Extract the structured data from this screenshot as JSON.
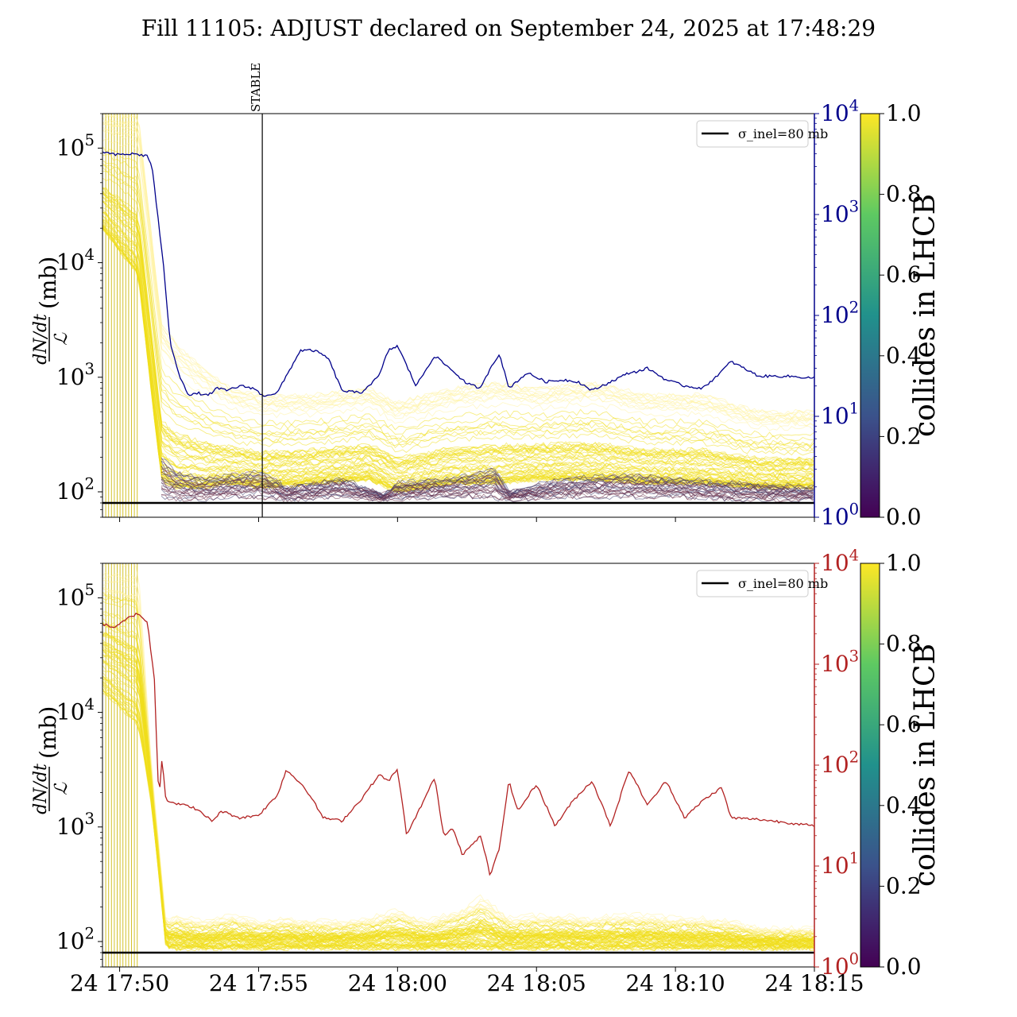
{
  "title": "Fill 11105: ADJUST declared on September 24, 2025 at 17:48:29",
  "chart_data": [
    {
      "type": "line",
      "panel": "top",
      "title": "",
      "ylabel_numerator": "dN/dt",
      "ylabel_denominator": "ℒ",
      "ylabel_unit": "(mb)",
      "yscale": "log",
      "ylim": [
        60,
        200000
      ],
      "yticks": [
        "10^2",
        "10^3",
        "10^4",
        "10^5"
      ],
      "y2scale": "log",
      "y2lim": [
        1,
        10000
      ],
      "y2ticks": [
        "10^0",
        "10^1",
        "10^2",
        "10^3",
        "10^4"
      ],
      "y2color": "#00008b",
      "xlim": [
        "17:49:23",
        "18:15:00"
      ],
      "xtick_labels": [],
      "vline": {
        "x": "17:55:08",
        "label": "STABLE"
      },
      "legend": {
        "entry": "σ_inel=80 mb",
        "placement": "top-right"
      },
      "hline": {
        "y": 80,
        "color": "#000000"
      },
      "bands": [
        {
          "name": "",
          "color_value": 1.0,
          "x": [
            "17:49:23",
            "17:50:40",
            "17:51:30",
            "17:52:00",
            "17:53:00",
            "17:54:00",
            "17:55:08",
            "17:57:00",
            "17:59:00",
            "18:00:00",
            "18:02:00",
            "18:03:30",
            "18:05:00",
            "18:07:00",
            "18:09:00",
            "18:11:00",
            "18:13:00",
            "18:15:00"
          ],
          "lo": [
            20000,
            8000,
            130,
            110,
            110,
            120,
            110,
            120,
            130,
            100,
            120,
            120,
            130,
            130,
            120,
            120,
            110,
            110
          ],
          "hi": [
            200000,
            200000,
            3000,
            2000,
            1200,
            800,
            700,
            700,
            800,
            600,
            800,
            900,
            800,
            900,
            700,
            700,
            500,
            500
          ]
        },
        {
          "name": "",
          "color_value": 0.05,
          "x": [
            "17:51:30",
            "17:52:00",
            "17:53:00",
            "17:54:00",
            "17:55:08",
            "17:56:00",
            "17:58:00",
            "17:59:30",
            "18:00:00",
            "18:02:00",
            "18:03:30",
            "18:04:00",
            "18:06:00",
            "18:08:00",
            "18:10:00",
            "18:12:00",
            "18:15:00"
          ],
          "lo": [
            85,
            85,
            85,
            90,
            88,
            85,
            90,
            85,
            85,
            90,
            88,
            85,
            90,
            90,
            90,
            85,
            85
          ],
          "hi": [
            200,
            150,
            130,
            140,
            150,
            110,
            130,
            95,
            120,
            130,
            160,
            100,
            130,
            140,
            130,
            120,
            110
          ]
        }
      ],
      "series": [
        {
          "name": "",
          "axis": "y2",
          "x": [
            "17:49:23",
            "17:49:50",
            "17:50:30",
            "17:51:00",
            "17:51:10",
            "17:51:20",
            "17:51:35",
            "17:51:50",
            "17:52:10",
            "17:52:30",
            "17:52:50",
            "17:53:10",
            "17:53:30",
            "17:53:50",
            "17:54:20",
            "17:54:50",
            "17:55:08",
            "17:55:40",
            "17:56:30",
            "17:57:00",
            "17:57:30",
            "17:58:00",
            "17:58:40",
            "17:59:20",
            "17:59:40",
            "18:00:00",
            "18:00:40",
            "18:01:20",
            "18:02:00",
            "18:02:30",
            "18:03:00",
            "18:03:20",
            "18:03:40",
            "18:04:00",
            "18:04:40",
            "18:05:20",
            "18:06:00",
            "18:06:30",
            "18:07:00",
            "18:07:40",
            "18:08:20",
            "18:08:40",
            "18:09:00",
            "18:09:40",
            "18:10:20",
            "18:11:00",
            "18:11:40",
            "18:12:00",
            "18:13:00",
            "18:14:00",
            "18:15:00"
          ],
          "y": [
            4200,
            3900,
            4000,
            3800,
            3000,
            1200,
            300,
            50,
            25,
            16,
            17,
            16,
            19,
            18,
            20,
            19,
            16,
            17,
            45,
            45,
            38,
            18,
            17,
            25,
            45,
            50,
            20,
            40,
            28,
            21,
            19,
            30,
            42,
            19,
            27,
            22,
            23,
            22,
            18,
            22,
            27,
            28,
            30,
            23,
            20,
            19,
            28,
            35,
            25,
            25,
            24
          ]
        }
      ]
    },
    {
      "type": "line",
      "panel": "bottom",
      "title": "",
      "ylabel_numerator": "dN/dt",
      "ylabel_denominator": "ℒ",
      "ylabel_unit": "(mb)",
      "yscale": "log",
      "ylim": [
        60,
        200000
      ],
      "yticks": [
        "10^2",
        "10^3",
        "10^4",
        "10^5"
      ],
      "y2scale": "log",
      "y2lim": [
        1,
        10000
      ],
      "y2ticks": [
        "10^0",
        "10^1",
        "10^2",
        "10^3",
        "10^4"
      ],
      "y2color": "#b22222",
      "xlim": [
        "17:49:23",
        "18:15:00"
      ],
      "xtick_labels": [
        "24 17:50",
        "24 17:55",
        "24 18:00",
        "24 18:05",
        "24 18:10",
        "24 18:15"
      ],
      "xtick_times": [
        "17:50:00",
        "17:55:00",
        "18:00:00",
        "18:05:00",
        "18:10:00",
        "18:15:00"
      ],
      "legend": {
        "entry": "σ_inel=80 mb",
        "placement": "top-right"
      },
      "hline": {
        "y": 80,
        "color": "#000000"
      },
      "bands": [
        {
          "name": "",
          "color_value": 1.0,
          "x": [
            "17:49:23",
            "17:50:40",
            "17:51:10",
            "17:51:40",
            "17:52:00",
            "17:53:00",
            "17:54:00",
            "17:55:00",
            "17:56:00",
            "17:57:00",
            "17:58:00",
            "17:59:00",
            "18:00:00",
            "18:01:00",
            "18:02:00",
            "18:02:30",
            "18:03:00",
            "18:03:30",
            "18:04:00",
            "18:05:00",
            "18:06:00",
            "18:07:00",
            "18:08:00",
            "18:09:00",
            "18:10:00",
            "18:11:00",
            "18:12:00",
            "18:13:00",
            "18:14:00",
            "18:15:00"
          ],
          "lo": [
            15000,
            8000,
            1500,
            90,
            88,
            88,
            88,
            88,
            88,
            88,
            88,
            88,
            88,
            88,
            88,
            88,
            88,
            88,
            88,
            88,
            88,
            88,
            88,
            88,
            88,
            88,
            88,
            88,
            88,
            88
          ],
          "hi": [
            200000,
            200000,
            3000,
            150,
            170,
            150,
            170,
            150,
            160,
            150,
            150,
            160,
            190,
            150,
            180,
            200,
            250,
            200,
            160,
            170,
            170,
            160,
            170,
            170,
            160,
            160,
            150,
            130,
            130,
            130
          ]
        }
      ],
      "series": [
        {
          "name": "",
          "axis": "y2",
          "x": [
            "17:49:23",
            "17:49:50",
            "17:50:20",
            "17:50:40",
            "17:51:00",
            "17:51:15",
            "17:51:25",
            "17:51:30",
            "17:51:35",
            "17:51:40",
            "17:52:00",
            "17:52:40",
            "17:53:20",
            "17:53:40",
            "17:54:20",
            "17:55:00",
            "17:55:40",
            "17:56:00",
            "17:56:40",
            "17:57:20",
            "17:58:00",
            "17:58:40",
            "17:59:20",
            "17:59:40",
            "18:00:00",
            "18:00:20",
            "18:01:20",
            "18:01:40",
            "18:02:00",
            "18:02:20",
            "18:02:40",
            "18:03:00",
            "18:03:20",
            "18:03:40",
            "18:04:00",
            "18:04:20",
            "18:05:00",
            "18:05:40",
            "18:06:20",
            "18:07:00",
            "18:07:40",
            "18:08:20",
            "18:09:00",
            "18:09:40",
            "18:10:20",
            "18:11:00",
            "18:11:40",
            "18:12:00",
            "18:13:00",
            "18:14:00",
            "18:15:00"
          ],
          "y": [
            2500,
            2300,
            2900,
            3200,
            2600,
            700,
            40,
            120,
            80,
            45,
            42,
            38,
            28,
            35,
            30,
            32,
            50,
            90,
            60,
            30,
            28,
            45,
            80,
            70,
            90,
            20,
            75,
            20,
            24,
            13,
            16,
            20,
            8,
            15,
            70,
            35,
            65,
            25,
            45,
            70,
            25,
            90,
            40,
            70,
            30,
            45,
            60,
            30,
            29,
            27,
            25
          ]
        }
      ]
    }
  ],
  "colorbar": {
    "label": "collides in LHCB",
    "ticks": [
      "0.0",
      "0.2",
      "0.4",
      "0.6",
      "0.8",
      "1.0"
    ],
    "colormap": "viridis",
    "colors": [
      "#440154",
      "#3b528b",
      "#21918c",
      "#5ec962",
      "#fde725"
    ]
  },
  "colors": {
    "text": "#000000",
    "saturated": "#fde725",
    "low": "#6a2f4b"
  }
}
